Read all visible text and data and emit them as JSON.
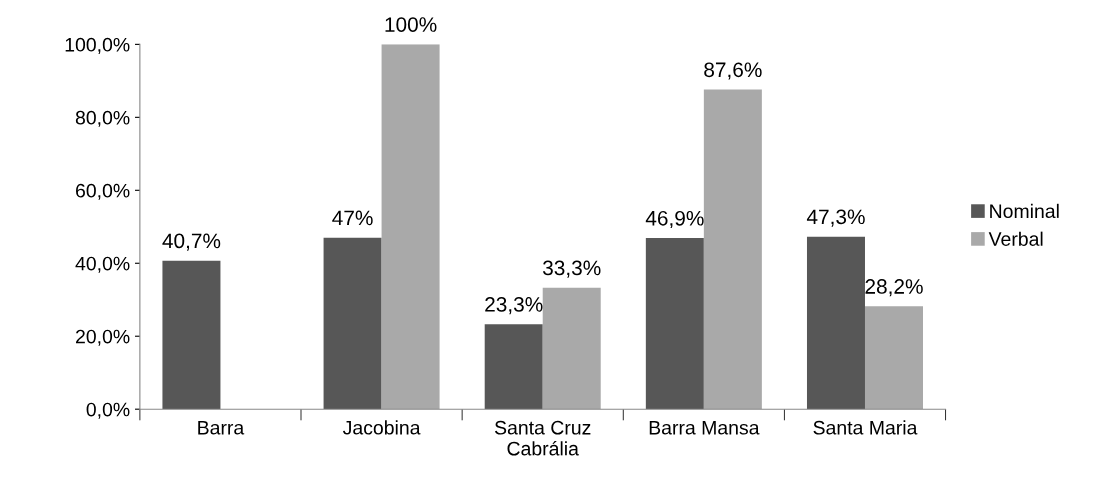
{
  "chart_data": {
    "type": "bar",
    "categories": [
      "Barra",
      "Jacobina",
      "Santa Cruz\nCabrália",
      "Barra Mansa",
      "Santa Maria"
    ],
    "series": [
      {
        "name": "Nominal",
        "color": "#575757",
        "values": [
          40.7,
          47,
          23.3,
          46.9,
          47.3
        ],
        "value_labels": [
          "40,7%",
          "47%",
          "23,3%",
          "46,9%",
          "47,3%"
        ]
      },
      {
        "name": "Verbal",
        "color": "#a9a9a9",
        "values": [
          null,
          100,
          33.3,
          87.6,
          28.2
        ],
        "value_labels": [
          null,
          "100%",
          "33,3%",
          "87,6%",
          "28,2%"
        ]
      }
    ],
    "ylim": [
      0,
      100
    ],
    "yticks": [
      {
        "value": 0,
        "label": "0,0%"
      },
      {
        "value": 20,
        "label": "20,0%"
      },
      {
        "value": 40,
        "label": "40,0%"
      },
      {
        "value": 60,
        "label": "60,0%"
      },
      {
        "value": 80,
        "label": "80,0%"
      },
      {
        "value": 100,
        "label": "100,0%"
      }
    ],
    "grid": false,
    "legend": "right"
  }
}
